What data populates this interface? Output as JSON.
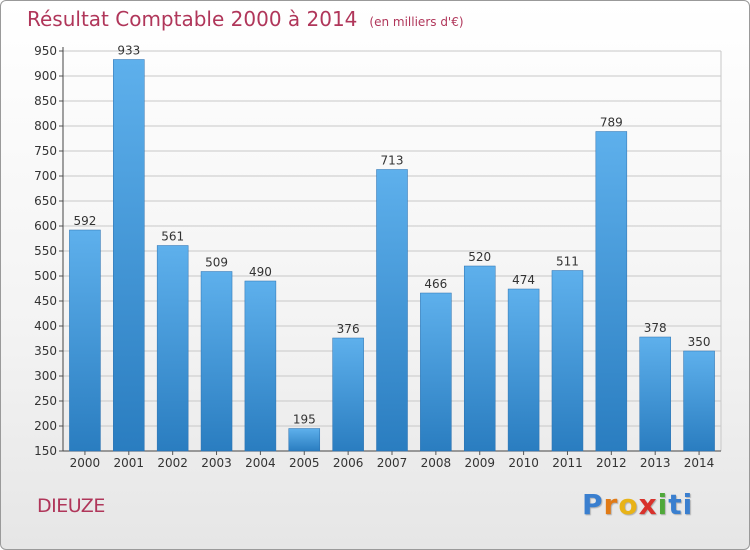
{
  "header": {
    "title": "Résultat Comptable 2000 à 2014",
    "subtitle": "(en milliers d'€)"
  },
  "location": "DIEUZE",
  "brand": {
    "name": "Proxiti",
    "letters": [
      "P",
      "r",
      "o",
      "x",
      "i",
      "ti"
    ]
  },
  "colors": {
    "title": "#b0365a",
    "bar_top": "#5eb0ec",
    "bar_bottom": "#2a7dc0"
  },
  "chart_data": {
    "type": "bar",
    "title": "Résultat Comptable 2000 à 2014",
    "subtitle": "(en milliers d'€)",
    "xlabel": "",
    "ylabel": "",
    "categories": [
      "2000",
      "2001",
      "2002",
      "2003",
      "2004",
      "2005",
      "2006",
      "2007",
      "2008",
      "2009",
      "2010",
      "2011",
      "2012",
      "2013",
      "2014"
    ],
    "values": [
      592,
      933,
      561,
      509,
      490,
      195,
      376,
      713,
      466,
      520,
      474,
      511,
      789,
      378,
      350
    ],
    "ylim": [
      150,
      950
    ],
    "yticks": [
      150,
      200,
      250,
      300,
      350,
      400,
      450,
      500,
      550,
      600,
      650,
      700,
      750,
      800,
      850,
      900,
      950
    ],
    "grid": true,
    "data_labels": true
  }
}
